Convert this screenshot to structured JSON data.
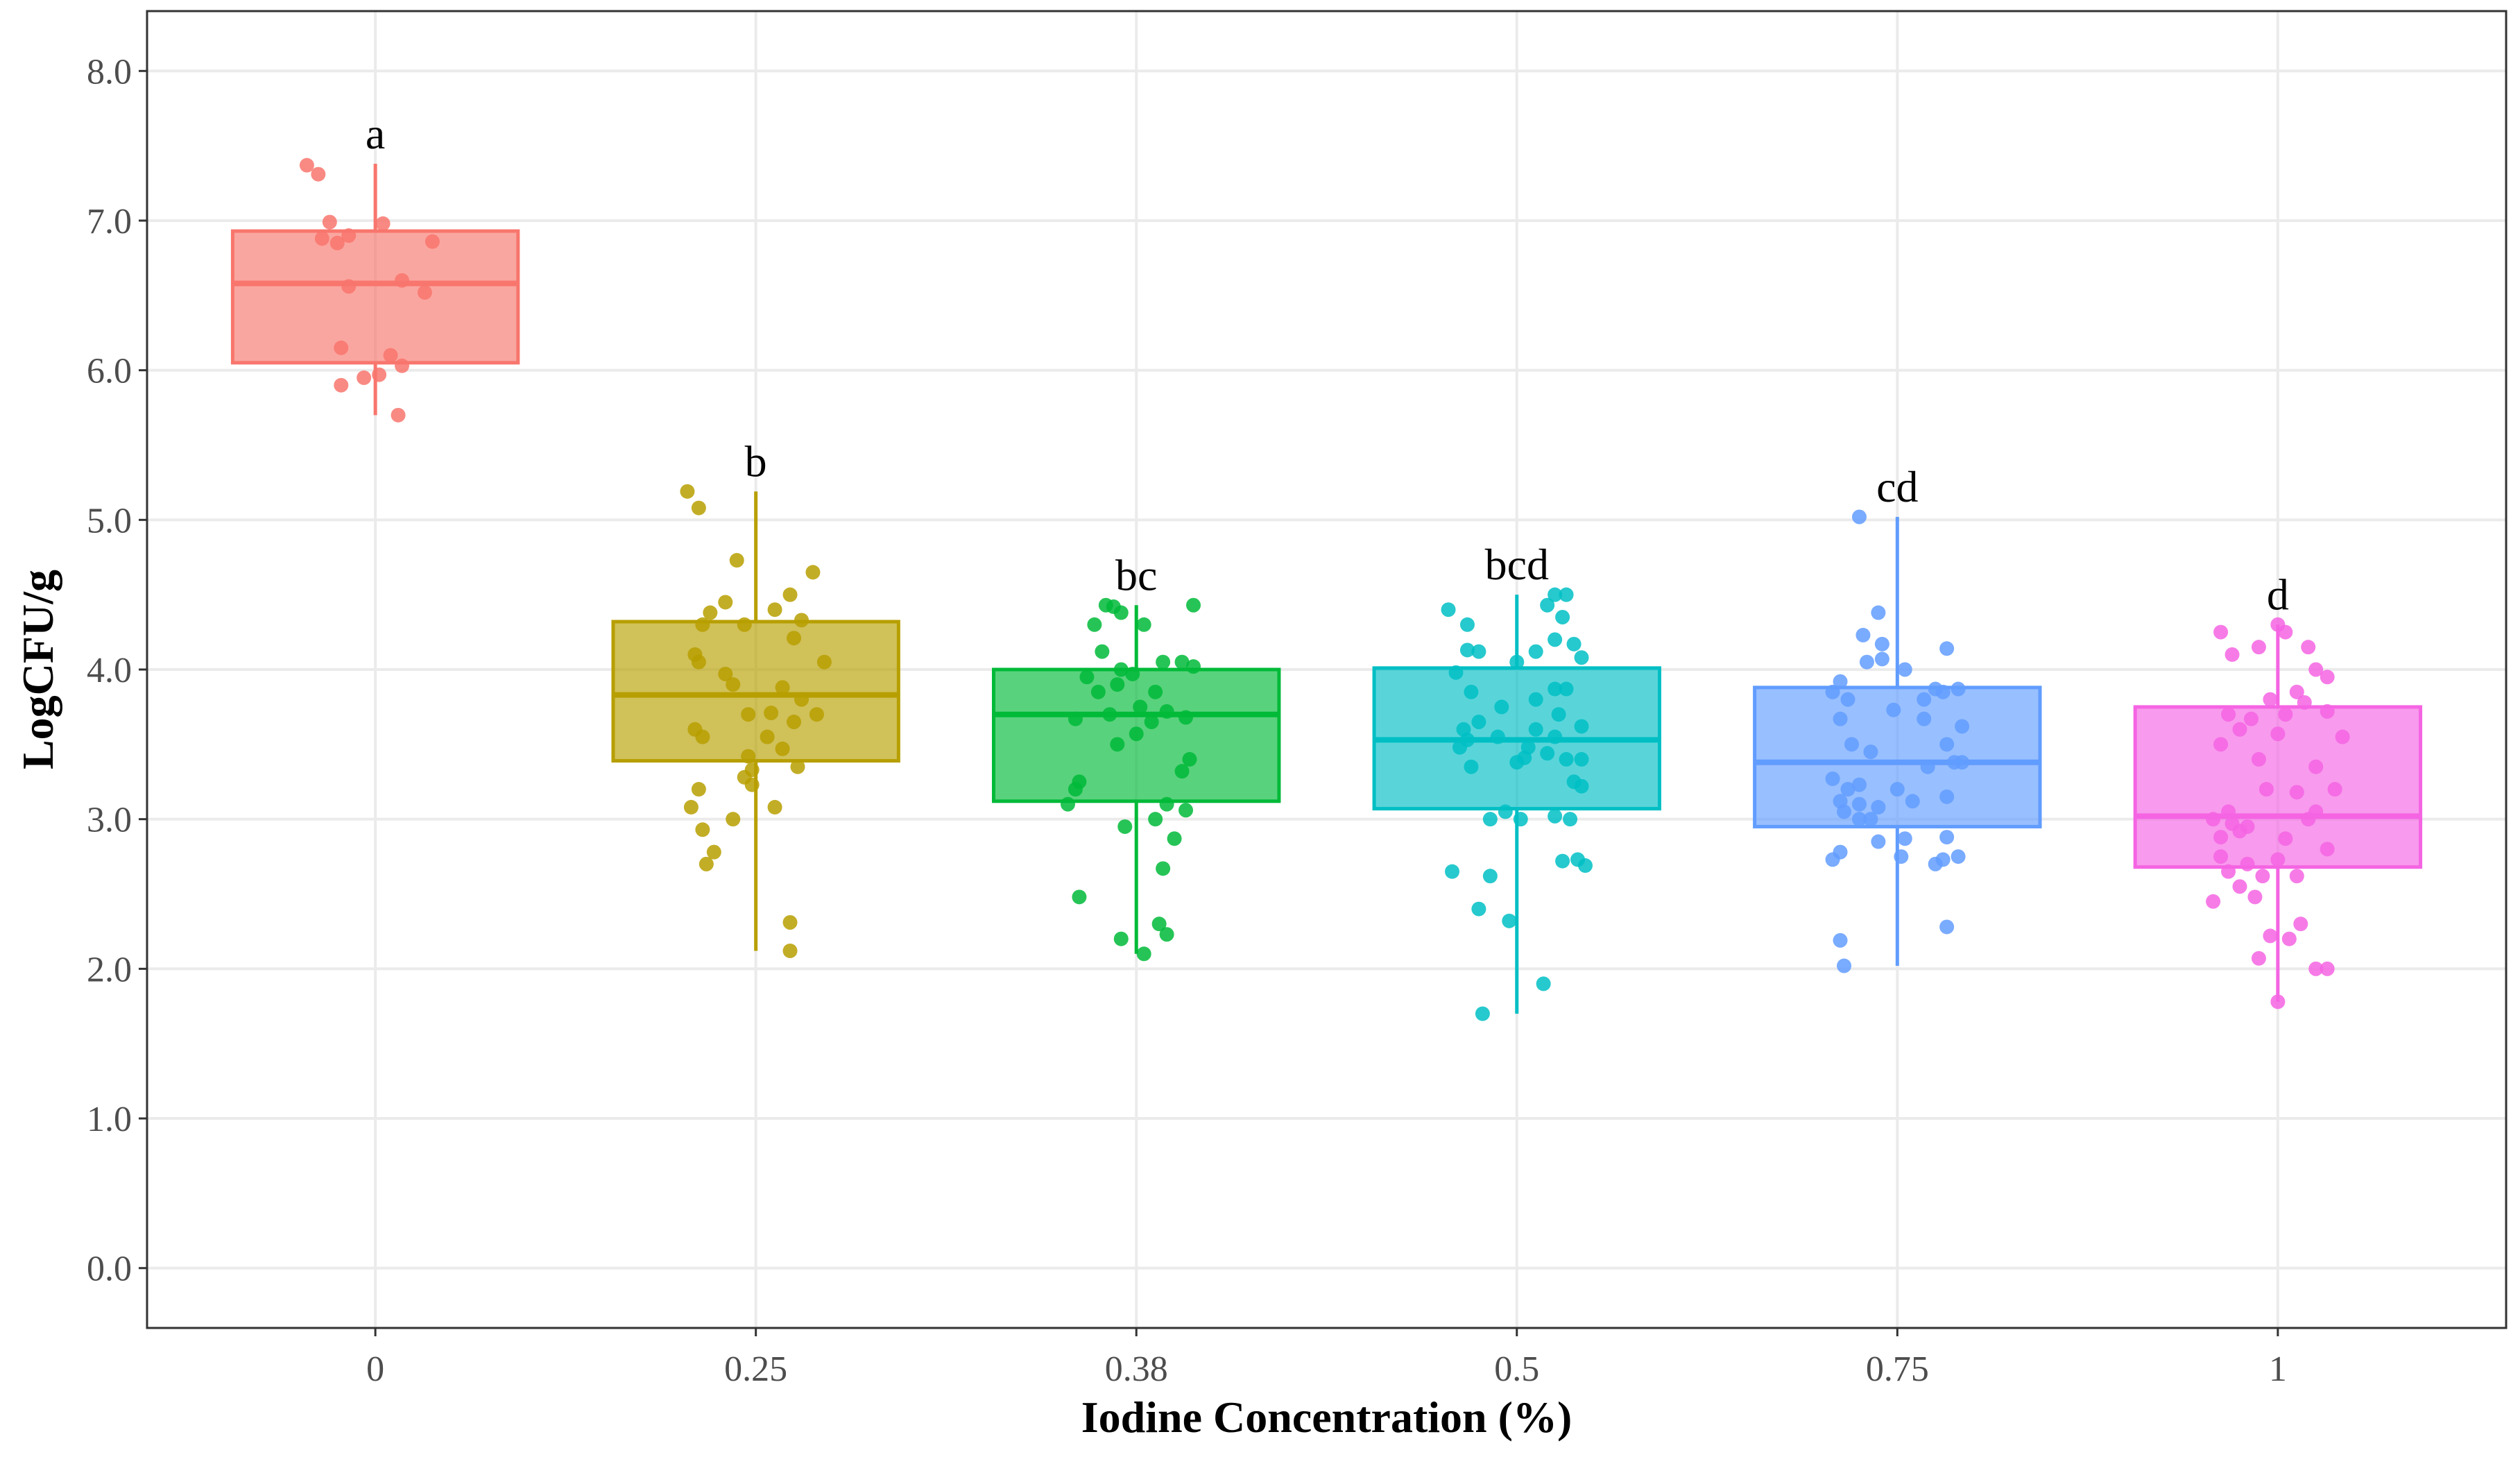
{
  "chart_data": {
    "type": "box",
    "xlabel": "Iodine Concentration (%)",
    "ylabel": "LogCFU/g",
    "ylim": [
      -0.4,
      8.4
    ],
    "yticks": [
      0,
      1,
      2,
      3,
      4,
      5,
      6,
      7,
      8
    ],
    "ytick_labels": [
      "0.0",
      "1.0",
      "2.0",
      "3.0",
      "4.0",
      "5.0",
      "6.0",
      "7.0",
      "8.0"
    ],
    "grid": true,
    "categories": [
      "0",
      "0.25",
      "0.38",
      "0.5",
      "0.75",
      "1"
    ],
    "groups": [
      {
        "name": "0",
        "color": "#F8766D",
        "letter": "a",
        "q1": 6.05,
        "median": 6.58,
        "q3": 6.93,
        "whisker_low": 5.7,
        "whisker_high": 7.38,
        "points": [
          [
            -0.18,
            7.37
          ],
          [
            -0.15,
            7.31
          ],
          [
            -0.12,
            6.99
          ],
          [
            0.02,
            6.98
          ],
          [
            -0.14,
            6.88
          ],
          [
            -0.1,
            6.85
          ],
          [
            -0.07,
            6.9
          ],
          [
            0.15,
            6.86
          ],
          [
            -0.07,
            6.56
          ],
          [
            0.07,
            6.6
          ],
          [
            0.13,
            6.52
          ],
          [
            -0.09,
            6.15
          ],
          [
            0.04,
            6.1
          ],
          [
            0.07,
            6.03
          ],
          [
            0.01,
            5.97
          ],
          [
            -0.03,
            5.95
          ],
          [
            -0.09,
            5.9
          ],
          [
            0.06,
            5.7
          ]
        ]
      },
      {
        "name": "0.25",
        "color": "#B79F00",
        "letter": "b",
        "q1": 3.39,
        "median": 3.83,
        "q3": 4.32,
        "whisker_low": 2.12,
        "whisker_high": 5.19,
        "points": [
          [
            -0.18,
            5.19
          ],
          [
            -0.15,
            5.08
          ],
          [
            -0.05,
            4.73
          ],
          [
            0.15,
            4.65
          ],
          [
            -0.12,
            4.38
          ],
          [
            0.09,
            4.5
          ],
          [
            -0.14,
            4.3
          ],
          [
            -0.08,
            4.45
          ],
          [
            0.05,
            4.4
          ],
          [
            0.12,
            4.33
          ],
          [
            -0.03,
            4.3
          ],
          [
            0.1,
            4.21
          ],
          [
            -0.16,
            4.1
          ],
          [
            -0.15,
            4.05
          ],
          [
            -0.08,
            3.97
          ],
          [
            0.18,
            4.05
          ],
          [
            0.12,
            3.8
          ],
          [
            -0.06,
            3.9
          ],
          [
            0.07,
            3.88
          ],
          [
            -0.02,
            3.7
          ],
          [
            0.04,
            3.71
          ],
          [
            0.1,
            3.65
          ],
          [
            0.16,
            3.7
          ],
          [
            -0.16,
            3.6
          ],
          [
            -0.14,
            3.55
          ],
          [
            0.03,
            3.55
          ],
          [
            0.07,
            3.47
          ],
          [
            -0.02,
            3.42
          ],
          [
            0.11,
            3.35
          ],
          [
            -0.01,
            3.33
          ],
          [
            -0.03,
            3.28
          ],
          [
            -0.01,
            3.23
          ],
          [
            -0.15,
            3.2
          ],
          [
            -0.17,
            3.08
          ],
          [
            0.05,
            3.08
          ],
          [
            -0.06,
            3.0
          ],
          [
            -0.14,
            2.93
          ],
          [
            -0.11,
            2.78
          ],
          [
            -0.13,
            2.7
          ],
          [
            0.09,
            2.31
          ],
          [
            0.09,
            2.12
          ]
        ]
      },
      {
        "name": "0.38",
        "color": "#00BA38",
        "letter": "bc",
        "q1": 3.12,
        "median": 3.7,
        "q3": 4.0,
        "whisker_low": 2.1,
        "whisker_high": 4.43,
        "points": [
          [
            -0.08,
            4.43
          ],
          [
            -0.06,
            4.42
          ],
          [
            -0.04,
            4.38
          ],
          [
            0.15,
            4.43
          ],
          [
            -0.11,
            4.3
          ],
          [
            0.02,
            4.3
          ],
          [
            -0.09,
            4.12
          ],
          [
            0.07,
            4.05
          ],
          [
            0.12,
            4.05
          ],
          [
            0.15,
            4.02
          ],
          [
            -0.04,
            4.0
          ],
          [
            -0.01,
            3.97
          ],
          [
            -0.13,
            3.95
          ],
          [
            -0.05,
            3.9
          ],
          [
            0.05,
            3.85
          ],
          [
            -0.1,
            3.85
          ],
          [
            0.01,
            3.75
          ],
          [
            0.08,
            3.72
          ],
          [
            -0.16,
            3.67
          ],
          [
            -0.07,
            3.7
          ],
          [
            0.04,
            3.65
          ],
          [
            0.13,
            3.68
          ],
          [
            0.0,
            3.57
          ],
          [
            -0.05,
            3.5
          ],
          [
            0.14,
            3.4
          ],
          [
            -0.15,
            3.25
          ],
          [
            -0.16,
            3.2
          ],
          [
            -0.18,
            3.1
          ],
          [
            0.12,
            3.32
          ],
          [
            0.08,
            3.1
          ],
          [
            0.13,
            3.06
          ],
          [
            0.05,
            3.0
          ],
          [
            -0.03,
            2.95
          ],
          [
            0.1,
            2.87
          ],
          [
            0.07,
            2.67
          ],
          [
            -0.15,
            2.48
          ],
          [
            0.06,
            2.3
          ],
          [
            0.08,
            2.23
          ],
          [
            -0.04,
            2.2
          ],
          [
            0.02,
            2.1
          ]
        ]
      },
      {
        "name": "0.5",
        "color": "#00BFC4",
        "letter": "bcd",
        "q1": 3.07,
        "median": 3.53,
        "q3": 4.01,
        "whisker_low": 1.7,
        "whisker_high": 4.5,
        "points": [
          [
            -0.18,
            4.4
          ],
          [
            -0.13,
            4.3
          ],
          [
            0.1,
            4.5
          ],
          [
            0.13,
            4.5
          ],
          [
            0.08,
            4.43
          ],
          [
            0.12,
            4.35
          ],
          [
            0.1,
            4.2
          ],
          [
            0.15,
            4.17
          ],
          [
            -0.13,
            4.13
          ],
          [
            -0.1,
            4.12
          ],
          [
            0.17,
            4.08
          ],
          [
            0.05,
            4.12
          ],
          [
            0.0,
            4.05
          ],
          [
            -0.16,
            3.98
          ],
          [
            0.1,
            3.87
          ],
          [
            0.13,
            3.87
          ],
          [
            0.05,
            3.8
          ],
          [
            -0.12,
            3.85
          ],
          [
            -0.04,
            3.75
          ],
          [
            0.11,
            3.7
          ],
          [
            -0.1,
            3.65
          ],
          [
            -0.14,
            3.6
          ],
          [
            0.17,
            3.62
          ],
          [
            0.05,
            3.6
          ],
          [
            -0.05,
            3.55
          ],
          [
            0.1,
            3.55
          ],
          [
            -0.13,
            3.53
          ],
          [
            -0.15,
            3.48
          ],
          [
            0.03,
            3.48
          ],
          [
            0.02,
            3.41
          ],
          [
            0.08,
            3.44
          ],
          [
            0.13,
            3.4
          ],
          [
            0.17,
            3.4
          ],
          [
            -0.12,
            3.35
          ],
          [
            0.0,
            3.38
          ],
          [
            0.15,
            3.25
          ],
          [
            0.17,
            3.22
          ],
          [
            -0.03,
            3.05
          ],
          [
            -0.07,
            3.0
          ],
          [
            0.01,
            3.0
          ],
          [
            0.1,
            3.02
          ],
          [
            0.14,
            3.0
          ],
          [
            0.16,
            2.73
          ],
          [
            0.18,
            2.69
          ],
          [
            0.12,
            2.72
          ],
          [
            -0.17,
            2.65
          ],
          [
            -0.07,
            2.62
          ],
          [
            -0.1,
            2.4
          ],
          [
            -0.02,
            2.32
          ],
          [
            0.07,
            1.9
          ],
          [
            -0.09,
            1.7
          ]
        ]
      },
      {
        "name": "0.75",
        "color": "#619CFF",
        "letter": "cd",
        "q1": 2.95,
        "median": 3.38,
        "q3": 3.88,
        "whisker_low": 2.02,
        "whisker_high": 5.02,
        "points": [
          [
            -0.1,
            5.02
          ],
          [
            -0.05,
            4.38
          ],
          [
            -0.09,
            4.23
          ],
          [
            -0.04,
            4.17
          ],
          [
            0.13,
            4.14
          ],
          [
            -0.08,
            4.05
          ],
          [
            0.02,
            4.0
          ],
          [
            -0.04,
            4.07
          ],
          [
            0.1,
            3.87
          ],
          [
            0.16,
            3.87
          ],
          [
            -0.15,
            3.92
          ],
          [
            -0.13,
            3.8
          ],
          [
            -0.17,
            3.85
          ],
          [
            0.12,
            3.85
          ],
          [
            0.07,
            3.8
          ],
          [
            -0.01,
            3.73
          ],
          [
            -0.15,
            3.67
          ],
          [
            0.07,
            3.67
          ],
          [
            0.17,
            3.62
          ],
          [
            -0.12,
            3.5
          ],
          [
            -0.07,
            3.45
          ],
          [
            0.13,
            3.5
          ],
          [
            0.15,
            3.38
          ],
          [
            0.08,
            3.35
          ],
          [
            0.17,
            3.38
          ],
          [
            -0.17,
            3.27
          ],
          [
            -0.13,
            3.2
          ],
          [
            -0.1,
            3.23
          ],
          [
            0.0,
            3.2
          ],
          [
            -0.15,
            3.12
          ],
          [
            -0.1,
            3.1
          ],
          [
            0.04,
            3.12
          ],
          [
            -0.05,
            3.08
          ],
          [
            0.13,
            3.15
          ],
          [
            -0.07,
            3.0
          ],
          [
            -0.1,
            3.0
          ],
          [
            -0.14,
            3.05
          ],
          [
            0.13,
            2.88
          ],
          [
            -0.05,
            2.85
          ],
          [
            0.02,
            2.87
          ],
          [
            -0.15,
            2.78
          ],
          [
            -0.17,
            2.73
          ],
          [
            0.1,
            2.7
          ],
          [
            0.12,
            2.73
          ],
          [
            0.16,
            2.75
          ],
          [
            0.01,
            2.75
          ],
          [
            0.13,
            2.28
          ],
          [
            -0.15,
            2.19
          ],
          [
            -0.14,
            2.02
          ]
        ]
      },
      {
        "name": "1",
        "color": "#F564E3",
        "letter": "d",
        "q1": 2.68,
        "median": 3.02,
        "q3": 3.75,
        "whisker_low": 1.78,
        "whisker_high": 4.3,
        "points": [
          [
            0.0,
            4.3
          ],
          [
            0.02,
            4.25
          ],
          [
            -0.15,
            4.25
          ],
          [
            -0.05,
            4.15
          ],
          [
            0.08,
            4.15
          ],
          [
            -0.12,
            4.1
          ],
          [
            0.1,
            4.0
          ],
          [
            0.13,
            3.95
          ],
          [
            0.05,
            3.85
          ],
          [
            -0.02,
            3.8
          ],
          [
            0.07,
            3.78
          ],
          [
            -0.13,
            3.7
          ],
          [
            0.02,
            3.7
          ],
          [
            0.13,
            3.72
          ],
          [
            -0.07,
            3.67
          ],
          [
            -0.1,
            3.6
          ],
          [
            0.0,
            3.57
          ],
          [
            0.17,
            3.55
          ],
          [
            -0.15,
            3.5
          ],
          [
            -0.05,
            3.4
          ],
          [
            0.1,
            3.35
          ],
          [
            -0.03,
            3.2
          ],
          [
            0.05,
            3.18
          ],
          [
            0.15,
            3.2
          ],
          [
            -0.13,
            3.05
          ],
          [
            -0.17,
            3.0
          ],
          [
            0.08,
            3.0
          ],
          [
            0.1,
            3.05
          ],
          [
            -0.12,
            2.97
          ],
          [
            -0.08,
            2.95
          ],
          [
            -0.15,
            2.88
          ],
          [
            -0.1,
            2.92
          ],
          [
            0.02,
            2.87
          ],
          [
            0.13,
            2.8
          ],
          [
            -0.15,
            2.75
          ],
          [
            0.0,
            2.73
          ],
          [
            -0.08,
            2.7
          ],
          [
            -0.13,
            2.65
          ],
          [
            -0.04,
            2.62
          ],
          [
            0.05,
            2.62
          ],
          [
            -0.1,
            2.55
          ],
          [
            -0.06,
            2.48
          ],
          [
            -0.17,
            2.45
          ],
          [
            0.06,
            2.3
          ],
          [
            -0.02,
            2.22
          ],
          [
            0.03,
            2.2
          ],
          [
            -0.05,
            2.07
          ],
          [
            0.1,
            2.0
          ],
          [
            0.13,
            2.0
          ],
          [
            0.0,
            1.78
          ]
        ]
      }
    ]
  }
}
